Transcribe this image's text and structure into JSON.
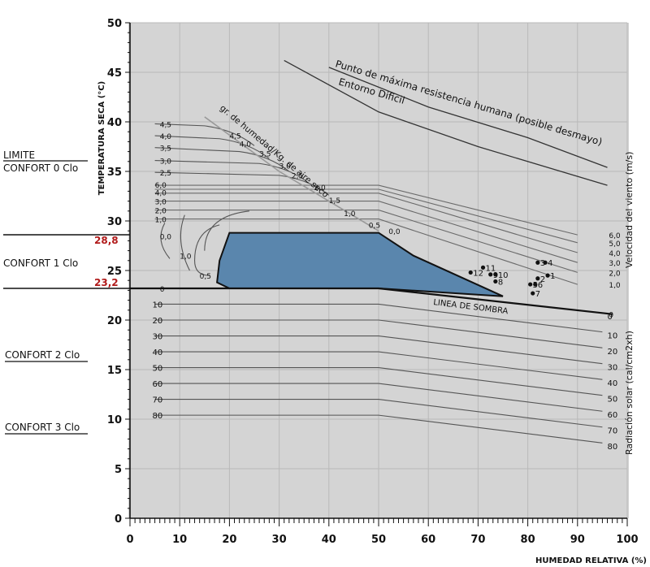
{
  "chart_data": {
    "type": "line",
    "xlabel": "HUMEDAD RELATIVA (%)",
    "ylabel": "TEMPERATURA SECA (°C)",
    "xlim": [
      0,
      100
    ],
    "ylim": [
      0,
      50
    ],
    "x_ticks": [
      "0",
      "10",
      "20",
      "30",
      "40",
      "50",
      "60",
      "70",
      "80",
      "90",
      "100"
    ],
    "y_ticks": [
      "0",
      "5",
      "10",
      "15",
      "20",
      "25",
      "30",
      "35",
      "40",
      "45",
      "50"
    ],
    "grid": true,
    "comfort_zone": {
      "color": "#5a86ad",
      "polygon": [
        [
          20,
          28.8
        ],
        [
          50,
          28.8
        ],
        [
          57,
          26.5
        ],
        [
          75,
          22.4
        ],
        [
          50,
          23.2
        ],
        [
          20,
          23.2
        ],
        [
          17.5,
          23.8
        ],
        [
          18,
          26
        ],
        [
          20,
          28.8
        ]
      ]
    },
    "shade_line": {
      "label": "LINEA DE SOMBRA",
      "points": [
        [
          0,
          23.2
        ],
        [
          50,
          23.2
        ],
        [
          97,
          20.6
        ]
      ]
    },
    "max_resistance_curve": {
      "label": "Punto de máxima resistencia humana (posible desmayo)",
      "points": [
        [
          40,
          45.5
        ],
        [
          60,
          41.5
        ],
        [
          80,
          38.4
        ],
        [
          96,
          35.4
        ]
      ]
    },
    "difficult_curve": {
      "label": "Entorno Dificil",
      "points": [
        [
          31,
          46.2
        ],
        [
          50,
          41
        ],
        [
          70,
          37.5
        ],
        [
          96,
          33.6
        ]
      ]
    },
    "humidity_line": {
      "label": "gr. de humedad/Kg. de aire seco",
      "points": [
        [
          15,
          40.5
        ],
        [
          30,
          35
        ],
        [
          50,
          29
        ]
      ],
      "values": [
        {
          "label": "4,5",
          "x": 20,
          "y": 38.3
        },
        {
          "label": "4,0",
          "x": 22,
          "y": 37.5
        },
        {
          "label": "3,5",
          "x": 26,
          "y": 36.5
        },
        {
          "label": "3,0",
          "x": 30,
          "y": 35.3
        },
        {
          "label": "2,5",
          "x": 32.5,
          "y": 34.3
        },
        {
          "label": "2,0",
          "x": 37,
          "y": 33.1
        },
        {
          "label": "1,5",
          "x": 40,
          "y": 31.8
        },
        {
          "label": "1,0",
          "x": 43,
          "y": 30.5
        },
        {
          "label": "0,5",
          "x": 48,
          "y": 29.3
        },
        {
          "label": "0,0",
          "x": 52,
          "y": 28.7
        }
      ]
    },
    "left_curve_labels": [
      {
        "label": "4,5",
        "x": 6,
        "y": 39.8
      },
      {
        "label": "4,0",
        "x": 6,
        "y": 38.6
      },
      {
        "label": "3,5",
        "x": 6,
        "y": 37.4
      },
      {
        "label": "3,0",
        "x": 6,
        "y": 36.1
      },
      {
        "label": "2,5",
        "x": 6,
        "y": 34.9
      },
      {
        "label": "6,0",
        "x": 5,
        "y": 33.7
      },
      {
        "label": "4,0",
        "x": 5,
        "y": 32.9
      },
      {
        "label": "3,0",
        "x": 5,
        "y": 32.0
      },
      {
        "label": "2,0",
        "x": 5,
        "y": 31.1
      },
      {
        "label": "1,0",
        "x": 5,
        "y": 30.2
      },
      {
        "label": "0,0",
        "x": 6,
        "y": 28.5
      },
      {
        "label": "1,0",
        "x": 10,
        "y": 26.5
      },
      {
        "label": "0,5",
        "x": 14,
        "y": 24.5
      },
      {
        "label": "0",
        "x": 6,
        "y": 23.2
      }
    ],
    "wind_curves": [
      {
        "name": "6,0",
        "points": [
          [
            5,
            33.6
          ],
          [
            50,
            33.6
          ],
          [
            90,
            28.6
          ]
        ]
      },
      {
        "name": "5,0",
        "points": [
          [
            5,
            33.2
          ],
          [
            50,
            33.2
          ],
          [
            90,
            27.8
          ]
        ]
      },
      {
        "name": "4,0",
        "points": [
          [
            5,
            32.8
          ],
          [
            50,
            32.8
          ],
          [
            90,
            26.8
          ]
        ]
      },
      {
        "name": "3,0",
        "points": [
          [
            5,
            32.0
          ],
          [
            50,
            32.0
          ],
          [
            90,
            25.8
          ]
        ]
      },
      {
        "name": "2,0",
        "points": [
          [
            5,
            31.1
          ],
          [
            50,
            31.1
          ],
          [
            90,
            24.8
          ]
        ]
      },
      {
        "name": "1,0",
        "points": [
          [
            5,
            30.2
          ],
          [
            50,
            30.2
          ],
          [
            90,
            23.6
          ]
        ]
      }
    ],
    "wind_labels": [
      "6,0",
      "5,0",
      "4,0",
      "3,0",
      "2,0",
      "1,0",
      "0"
    ],
    "wind_axis_label": "Velocidad del viento (m/s)",
    "radiation_lines": [
      {
        "name": "10",
        "y_left": 21.6,
        "y_right": 18.8
      },
      {
        "name": "20",
        "y_left": 20.0,
        "y_right": 17.2
      },
      {
        "name": "30",
        "y_left": 18.4,
        "y_right": 15.6
      },
      {
        "name": "40",
        "y_left": 16.8,
        "y_right": 14.0
      },
      {
        "name": "50",
        "y_left": 15.2,
        "y_right": 12.4
      },
      {
        "name": "60",
        "y_left": 13.6,
        "y_right": 10.8
      },
      {
        "name": "70",
        "y_left": 12.0,
        "y_right": 9.2
      },
      {
        "name": "80",
        "y_left": 10.4,
        "y_right": 7.6
      }
    ],
    "radiation_labels": [
      "0",
      "10",
      "20",
      "30",
      "40",
      "50",
      "60",
      "70",
      "80"
    ],
    "radiation_axis_label": "Radiación solar (cal/cm2xh)",
    "points": [
      {
        "label": "1",
        "x": 84,
        "y": 24.5
      },
      {
        "label": "2",
        "x": 82,
        "y": 24.2
      },
      {
        "label": "3",
        "x": 82,
        "y": 25.8
      },
      {
        "label": "4",
        "x": 83.5,
        "y": 25.8
      },
      {
        "label": "5",
        "x": 80.5,
        "y": 23.6
      },
      {
        "label": "6",
        "x": 81.5,
        "y": 23.6
      },
      {
        "label": "7",
        "x": 81,
        "y": 22.7
      },
      {
        "label": "8",
        "x": 73.5,
        "y": 23.9
      },
      {
        "label": "9",
        "x": 72.5,
        "y": 24.6
      },
      {
        "label": "10",
        "x": 73.5,
        "y": 24.6
      },
      {
        "label": "11",
        "x": 71,
        "y": 25.3
      },
      {
        "label": "12",
        "x": 68.5,
        "y": 24.8
      }
    ]
  },
  "side": {
    "limite": "LIMITE",
    "confort0": "CONFORT 0 Clo",
    "val_288": "28,8",
    "confort1": "CONFORT 1 Clo",
    "val_232": "23,2",
    "confort2": "CONFORT 2 Clo",
    "confort3": "CONFORT 3 Clo"
  }
}
